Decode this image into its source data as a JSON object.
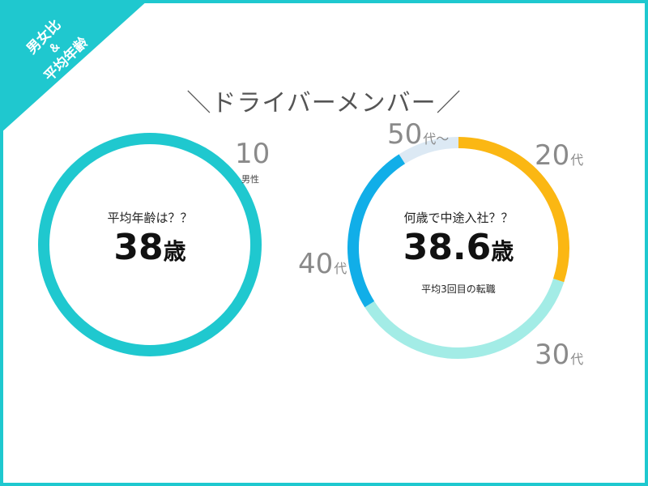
{
  "corner": {
    "line1": "男女比",
    "line2": "＆",
    "line3": "平均年齢"
  },
  "headline": "＼ドライバーメンバー／",
  "left_chart": {
    "count": "10",
    "count_label": "男性",
    "question": "平均年齢は？？",
    "value": "38",
    "unit": "歳",
    "ring_color": "#1fc8cf"
  },
  "right_chart": {
    "question": "何歳で中途入社？？",
    "value": "38.6",
    "unit": "歳",
    "note": "平均3回目の転職",
    "labels": [
      {
        "num": "20",
        "suffix": "代"
      },
      {
        "num": "30",
        "suffix": "代"
      },
      {
        "num": "40",
        "suffix": "代"
      },
      {
        "num": "50",
        "suffix": "代～"
      }
    ]
  },
  "chart_data": [
    {
      "type": "pie",
      "categories": [
        "男性"
      ],
      "values": [
        10
      ],
      "colors": [
        "#1fc8cf"
      ]
    },
    {
      "type": "pie",
      "categories": [
        "20代",
        "30代",
        "40代",
        "50代～"
      ],
      "values": [
        30,
        36,
        25,
        9
      ],
      "colors": [
        "#fbb713",
        "#a3ece6",
        "#11aee8",
        "#dce9f4"
      ]
    }
  ]
}
